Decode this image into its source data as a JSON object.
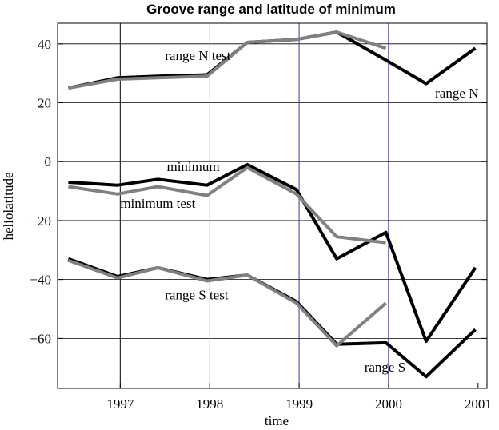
{
  "chart_data": {
    "type": "line",
    "title": "Groove range and latitude of minimum",
    "xlabel": "time",
    "ylabel": "heliolatitude",
    "xlim": [
      1996.3,
      2001.1
    ],
    "ylim": [
      -77,
      47
    ],
    "x_ticks": [
      1997,
      1998,
      1999,
      2000,
      2001
    ],
    "y_ticks": [
      40,
      20,
      0,
      -20,
      -40,
      -60
    ],
    "x_tick_labels": [
      "1997",
      "1998",
      "1999",
      "2000",
      "2001"
    ],
    "y_tick_labels": [
      "40",
      "20",
      "0",
      "−20",
      "−40",
      "−60"
    ],
    "horizontal_gridlines": [
      40,
      20,
      0,
      -20,
      -40,
      -60
    ],
    "vertical_lines": [
      {
        "x": 1997,
        "color": "#000000"
      },
      {
        "x": 1998,
        "color": "#bbbbbb"
      },
      {
        "x": 1999,
        "color": "#3a3a99"
      },
      {
        "x": 2000,
        "color": "#1a1a88"
      }
    ],
    "series": [
      {
        "name": "range N",
        "color": "#000000",
        "x": [
          1996.42,
          1996.97,
          1997.42,
          1997.97,
          1998.42,
          1998.97,
          1999.42,
          1999.97,
          2000.42,
          2000.97
        ],
        "y": [
          25,
          28.5,
          29,
          29.5,
          40.5,
          41.5,
          44,
          34.5,
          26.5,
          38.5
        ]
      },
      {
        "name": "range N test",
        "color": "#808080",
        "x": [
          1996.42,
          1996.97,
          1997.42,
          1997.97,
          1998.42,
          1998.97,
          1999.42,
          1999.97
        ],
        "y": [
          25,
          28,
          28.5,
          29,
          40.5,
          41.5,
          44,
          38.5
        ]
      },
      {
        "name": "minimum",
        "color": "#000000",
        "x": [
          1996.42,
          1996.97,
          1997.42,
          1997.97,
          1998.42,
          1998.97,
          1999.42,
          1999.97,
          2000.42,
          2000.97
        ],
        "y": [
          -7,
          -8,
          -6,
          -8,
          -1,
          -9.5,
          -33,
          -24,
          -61,
          -36
        ]
      },
      {
        "name": "minimum test",
        "color": "#808080",
        "x": [
          1996.42,
          1996.97,
          1997.42,
          1997.97,
          1998.42,
          1998.97,
          1999.42,
          1999.97
        ],
        "y": [
          -8.5,
          -11,
          -8.5,
          -11.5,
          -2,
          -11,
          -25.5,
          -27.5
        ]
      },
      {
        "name": "range S",
        "color": "#000000",
        "x": [
          1996.42,
          1996.97,
          1997.42,
          1997.97,
          1998.42,
          1998.97,
          1999.42,
          1999.97,
          2000.42,
          2000.97
        ],
        "y": [
          -33,
          -39,
          -36,
          -40,
          -38.5,
          -47.5,
          -62,
          -61.5,
          -73,
          -57
        ]
      },
      {
        "name": "range S test",
        "color": "#808080",
        "x": [
          1996.42,
          1996.97,
          1997.42,
          1997.97,
          1998.42,
          1998.97,
          1999.42,
          1999.97
        ],
        "y": [
          -33.5,
          -39.5,
          -36,
          -40.5,
          -38.5,
          -48,
          -62.5,
          -48
        ]
      }
    ],
    "annotations": [
      {
        "text": "range N test",
        "x": 1997.5,
        "y": 34.5
      },
      {
        "text": "range N",
        "x": 2000.52,
        "y": 21.7
      },
      {
        "text": "minimum",
        "x": 1997.52,
        "y": -3.2
      },
      {
        "text": "minimum  test",
        "x": 1997.0,
        "y": -15.7
      },
      {
        "text": "range S test",
        "x": 1997.5,
        "y": -46.7
      },
      {
        "text": "range S",
        "x": 1999.73,
        "y": -71.3
      }
    ]
  }
}
